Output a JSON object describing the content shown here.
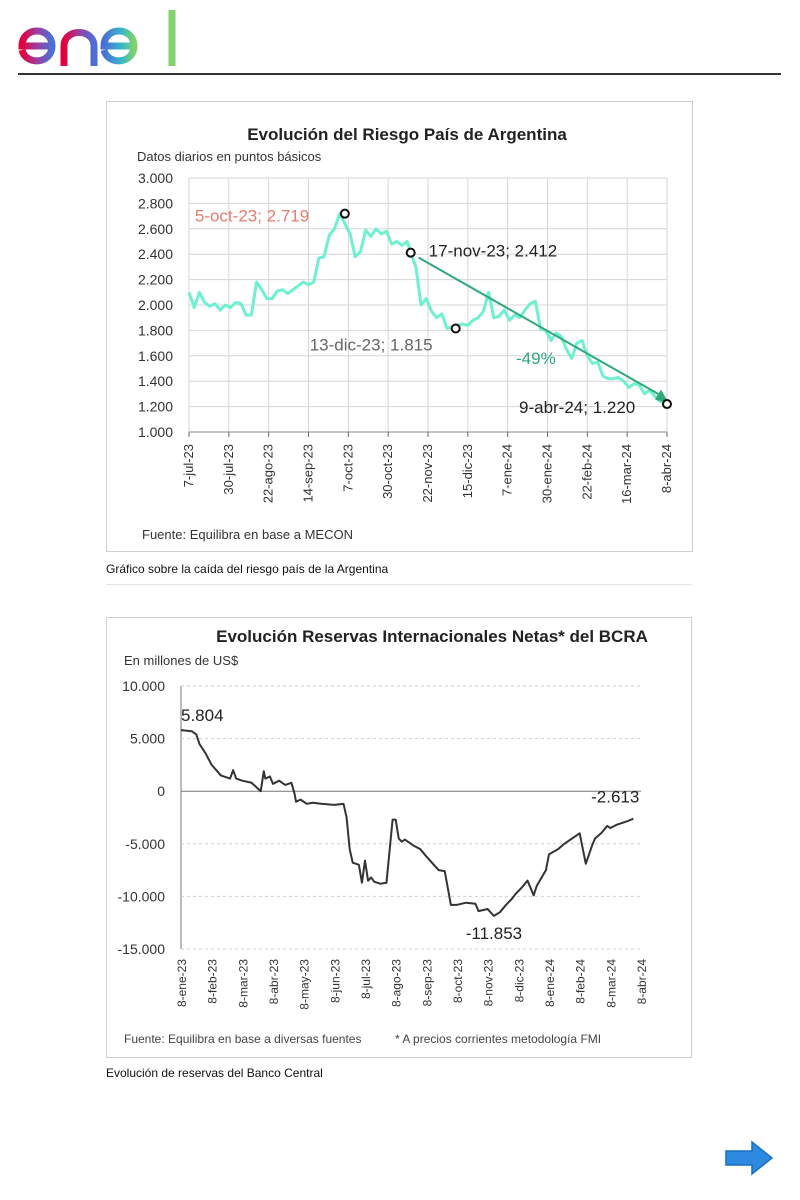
{
  "header": {
    "logo_text": "enel"
  },
  "captions": {
    "chart1": "Gráfico sobre la caída del riesgo país de la Argentina",
    "chart2": "Evolución de reservas del Banco Central"
  },
  "nav": {
    "next_icon": "arrow-right-icon"
  },
  "colors": {
    "series1": "#6ff0d0",
    "trend": "#2fa87a",
    "series2": "#333333",
    "annotation_red": "#e87b6f",
    "next_arrow": "#2d8ae0"
  },
  "chart_data": [
    {
      "type": "line",
      "title": "Evolución del Riesgo País de Argentina",
      "subtitle": "Datos diarios en puntos básicos",
      "source": "Fuente: Equilibra en base a MECON",
      "ylim": [
        1000,
        3000
      ],
      "yticks": [
        1000,
        1200,
        1400,
        1600,
        1800,
        2000,
        2200,
        2400,
        2600,
        2800,
        3000
      ],
      "ytick_labels": [
        "1.000",
        "1.200",
        "1.400",
        "1.600",
        "1.800",
        "2.000",
        "2.200",
        "2.400",
        "2.600",
        "2.800",
        "3.000"
      ],
      "xticks": [
        "7-jul-23",
        "30-jul-23",
        "22-ago-23",
        "14-sep-23",
        "7-oct-23",
        "30-oct-23",
        "22-nov-23",
        "15-dic-23",
        "7-ene-24",
        "30-ene-24",
        "22-feb-24",
        "16-mar-24",
        "8-abr-24"
      ],
      "xlim": [
        0,
        276
      ],
      "series": [
        {
          "name": "Riesgo País",
          "x": [
            0,
            3,
            6,
            9,
            12,
            15,
            18,
            21,
            24,
            27,
            30,
            33,
            36,
            39,
            42,
            45,
            48,
            51,
            54,
            57,
            60,
            63,
            66,
            69,
            72,
            75,
            78,
            81,
            84,
            87,
            90,
            93,
            96,
            99,
            102,
            105,
            108,
            111,
            114,
            117,
            120,
            123,
            126,
            128,
            131,
            134,
            137,
            140,
            143,
            146,
            149,
            152,
            155,
            158,
            161,
            164,
            167,
            170,
            173,
            176,
            179,
            182,
            185,
            188,
            191,
            194,
            197,
            200,
            203,
            206,
            209,
            212,
            215,
            218,
            221,
            224,
            227,
            230,
            233,
            236,
            239,
            242,
            245,
            248,
            251,
            254,
            257,
            260,
            263,
            266,
            269,
            272,
            275,
            276
          ],
          "values": [
            2100,
            1980,
            2100,
            2020,
            1990,
            2010,
            1960,
            2000,
            1980,
            2020,
            2010,
            1920,
            1920,
            2180,
            2120,
            2050,
            2050,
            2110,
            2120,
            2090,
            2120,
            2150,
            2180,
            2160,
            2180,
            2370,
            2380,
            2550,
            2600,
            2719,
            2640,
            2560,
            2380,
            2420,
            2590,
            2540,
            2600,
            2560,
            2580,
            2480,
            2500,
            2470,
            2500,
            2412,
            2300,
            2000,
            2050,
            1950,
            1900,
            1930,
            1815,
            1830,
            1840,
            1850,
            1840,
            1880,
            1900,
            1950,
            2100,
            1900,
            1910,
            1960,
            1880,
            1920,
            1900,
            1960,
            2010,
            2030,
            1810,
            1800,
            1720,
            1780,
            1750,
            1650,
            1580,
            1700,
            1720,
            1600,
            1540,
            1550,
            1440,
            1420,
            1420,
            1430,
            1400,
            1350,
            1380,
            1370,
            1300,
            1330,
            1280,
            1240,
            1230,
            1220
          ]
        }
      ],
      "trend_line": {
        "from": {
          "x": 128,
          "y": 2412
        },
        "to": {
          "x": 276,
          "y": 1240
        }
      },
      "annotations": [
        {
          "label": "5-oct-23; 2.719",
          "x": 90,
          "y": 2719
        },
        {
          "label": "17-nov-23; 2.412",
          "x": 128,
          "y": 2412
        },
        {
          "label": "13-dic-23; 1.815",
          "x": 154,
          "y": 1815
        },
        {
          "label": "9-abr-24; 1.220",
          "x": 276,
          "y": 1220
        },
        {
          "label": "-49%"
        }
      ]
    },
    {
      "type": "line",
      "title": "Evolución Reservas Internacionales Netas* del BCRA",
      "subtitle": "En millones de US$",
      "source": "Fuente: Equilibra en base a diversas fuentes",
      "footnote": "* A precios corrientes metodología FMI",
      "ylim": [
        -15000,
        10000
      ],
      "yticks": [
        -15000,
        -10000,
        -5000,
        0,
        5000,
        10000
      ],
      "ytick_labels": [
        "-15.000",
        "-10.000",
        "-5.000",
        "0",
        "5.000",
        "10.000"
      ],
      "xticks": [
        "8-ene-23",
        "8-feb-23",
        "8-mar-23",
        "8-abr-23",
        "8-may-23",
        "8-jun-23",
        "8-jul-23",
        "8-ago-23",
        "8-sep-23",
        "8-oct-23",
        "8-nov-23",
        "8-dic-23",
        "8-ene-24",
        "8-feb-24",
        "8-mar-24",
        "8-abr-24"
      ],
      "xlim": [
        0,
        15
      ],
      "series": [
        {
          "name": "Reservas netas",
          "x": [
            0,
            0.35,
            0.5,
            0.6,
            0.8,
            1.0,
            1.3,
            1.6,
            1.7,
            1.8,
            2.0,
            2.3,
            2.6,
            2.7,
            2.75,
            2.9,
            3.0,
            3.2,
            3.4,
            3.6,
            3.7,
            3.75,
            3.9,
            4.1,
            4.3,
            4.6,
            5.0,
            5.3,
            5.4,
            5.5,
            5.6,
            5.8,
            5.9,
            6.0,
            6.1,
            6.2,
            6.3,
            6.5,
            6.7,
            6.9,
            7.0,
            7.1,
            7.2,
            7.3,
            7.6,
            7.8,
            8.0,
            8.4,
            8.6,
            8.8,
            9.0,
            9.3,
            9.6,
            9.7,
            10.0,
            10.2,
            10.4,
            10.6,
            10.8,
            10.9,
            11.1,
            11.3,
            11.5,
            11.6,
            11.7,
            11.9,
            12.0,
            12.3,
            12.5,
            12.7,
            13.0,
            13.2,
            13.4,
            13.5,
            13.7,
            13.9,
            14.0,
            14.2,
            14.4,
            14.6,
            14.75
          ],
          "values": [
            5804,
            5700,
            5400,
            4500,
            3600,
            2500,
            1500,
            1200,
            2000,
            1200,
            1000,
            800,
            0,
            1900,
            1200,
            1400,
            700,
            1000,
            600,
            800,
            -200,
            -1000,
            -800,
            -1200,
            -1100,
            -1200,
            -1300,
            -1200,
            -2500,
            -5500,
            -6800,
            -7000,
            -8700,
            -6600,
            -8500,
            -8200,
            -8600,
            -8800,
            -8700,
            -2700,
            -2700,
            -4500,
            -4800,
            -4600,
            -5200,
            -5500,
            -6200,
            -7500,
            -7600,
            -10800,
            -10800,
            -10600,
            -10700,
            -11400,
            -11200,
            -11853,
            -11500,
            -10800,
            -10200,
            -9800,
            -9200,
            -8500,
            -9900,
            -9000,
            -8500,
            -7500,
            -6000,
            -5500,
            -5000,
            -4600,
            -4000,
            -6900,
            -5200,
            -4500,
            -4000,
            -3300,
            -3500,
            -3200,
            -3000,
            -2800,
            -2613
          ]
        }
      ],
      "annotations": [
        {
          "label": "5.804",
          "x": 0,
          "y": 5804
        },
        {
          "label": "-2.613",
          "x": 14.75,
          "y": -2613
        },
        {
          "label": "-11.853",
          "x": 10.4,
          "y": -11853
        }
      ]
    }
  ]
}
